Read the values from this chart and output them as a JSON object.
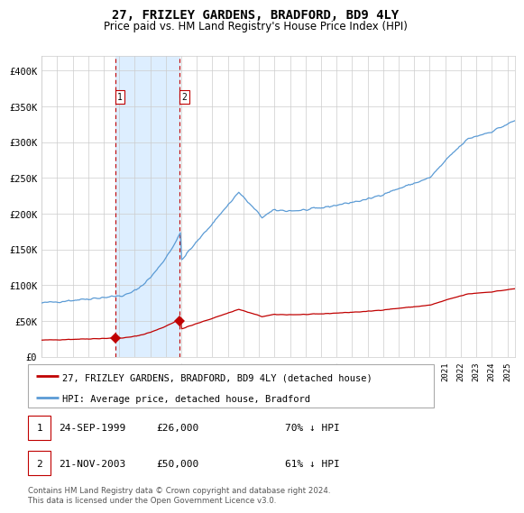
{
  "title": "27, FRIZLEY GARDENS, BRADFORD, BD9 4LY",
  "subtitle": "Price paid vs. HM Land Registry's House Price Index (HPI)",
  "ylabel_ticks": [
    "£0",
    "£50K",
    "£100K",
    "£150K",
    "£200K",
    "£250K",
    "£300K",
    "£350K",
    "£400K"
  ],
  "ytick_vals": [
    0,
    50000,
    100000,
    150000,
    200000,
    250000,
    300000,
    350000,
    400000
  ],
  "ylim": [
    0,
    420000
  ],
  "xlim_start": 1995.0,
  "xlim_end": 2025.5,
  "sale1_date": 1999.73,
  "sale1_price": 26000,
  "sale2_date": 2003.89,
  "sale2_price": 50000,
  "hpi_color": "#5b9bd5",
  "price_color": "#c00000",
  "shade_color": "#ddeeff",
  "legend_label1": "27, FRIZLEY GARDENS, BRADFORD, BD9 4LY (detached house)",
  "legend_label2": "HPI: Average price, detached house, Bradford",
  "table_row1": [
    "1",
    "24-SEP-1999",
    "£26,000",
    "70% ↓ HPI"
  ],
  "table_row2": [
    "2",
    "21-NOV-2003",
    "£50,000",
    "61% ↓ HPI"
  ],
  "footnote": "Contains HM Land Registry data © Crown copyright and database right 2024.\nThis data is licensed under the Open Government Licence v3.0.",
  "background_color": "#ffffff",
  "grid_color": "#cccccc"
}
